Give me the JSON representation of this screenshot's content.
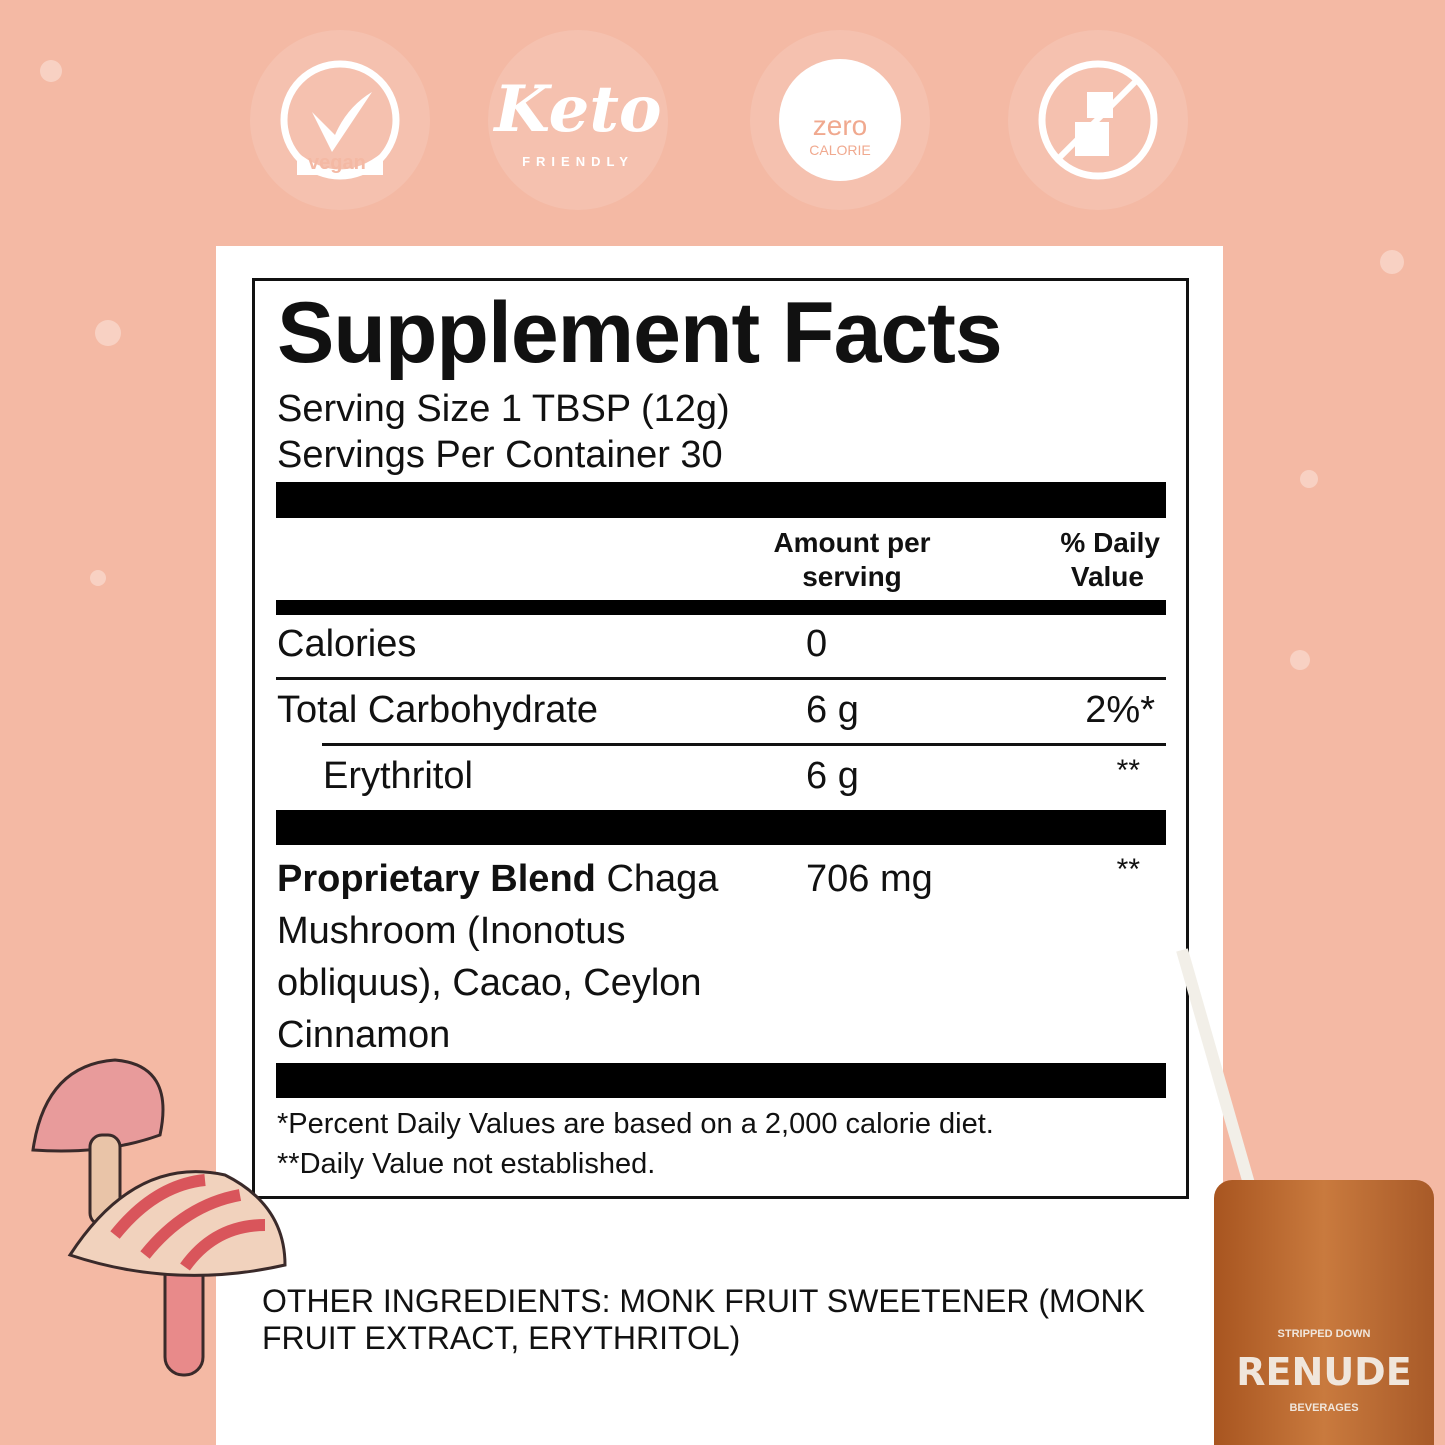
{
  "badges": [
    {
      "icon": "vegan-leaf-check-icon",
      "text": "vegan"
    },
    {
      "icon": "keto-friendly-icon",
      "text": "Keto",
      "subtext": "FRIENDLY"
    },
    {
      "icon": "zero-calorie-scale-icon",
      "text": "zero",
      "subtext": "CALORIE"
    },
    {
      "icon": "no-sugar-cubes-icon"
    }
  ],
  "facts": {
    "title": "Supplement Facts",
    "serving_size": "Serving Size 1 TBSP (12g)",
    "servings_per_container": "Servings Per Container 30",
    "col_amount_1": "Amount per",
    "col_amount_2": "serving",
    "col_dv_1": "% Daily",
    "col_dv_2": "Value",
    "rows": [
      {
        "name": "Calories",
        "amount": "0",
        "dv": ""
      },
      {
        "name": "Total Carbohydrate",
        "amount": "6 g",
        "dv": "2%*"
      },
      {
        "name": "Erythritol",
        "amount": "6 g",
        "dv": "**"
      }
    ],
    "blend": {
      "name": "Proprietary Blend",
      "desc_1": "Chaga",
      "desc_2": "Mushroom (Inonotus",
      "desc_3": "obliquus), Cacao, Ceylon",
      "desc_4": "Cinnamon",
      "amount": "706 mg",
      "dv": "**"
    },
    "footnote_1": "*Percent Daily Values are based on a 2,000 calorie diet.",
    "footnote_2": "**Daily Value not established."
  },
  "other_ingredients_1": "OTHER INGREDIENTS: MONK FRUIT SWEETENER (MONK",
  "other_ingredients_2": "FRUIT EXTRACT, ERYTHRITOL)",
  "brand": {
    "name": "RENUDE",
    "top": "STRIPPED DOWN",
    "bottom": "BEVERAGES"
  },
  "colors": {
    "background": "#f4b9a4",
    "label_ink": "#111111",
    "drink": "#b8652b"
  }
}
